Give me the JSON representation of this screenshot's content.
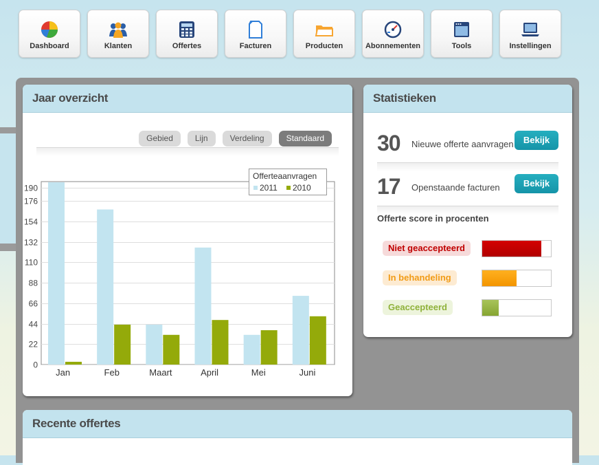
{
  "nav": [
    {
      "id": "dashboard",
      "label": "Dashboard",
      "icon": "pie-chart-icon"
    },
    {
      "id": "klanten",
      "label": "Klanten",
      "icon": "people-icon"
    },
    {
      "id": "offertes",
      "label": "Offertes",
      "icon": "calculator-icon"
    },
    {
      "id": "facturen",
      "label": "Facturen",
      "icon": "document-icon"
    },
    {
      "id": "producten",
      "label": "Producten",
      "icon": "folder-icon"
    },
    {
      "id": "abonnementen",
      "label": "Abonnementen",
      "icon": "gauge-icon"
    },
    {
      "id": "tools",
      "label": "Tools",
      "icon": "window-icon"
    },
    {
      "id": "instellingen",
      "label": "Instellingen",
      "icon": "laptop-icon"
    }
  ],
  "jaar": {
    "title": "Jaar overzicht",
    "tabs": [
      {
        "label": "Gebied",
        "active": false
      },
      {
        "label": "Lijn",
        "active": false
      },
      {
        "label": "Verdeling",
        "active": false
      },
      {
        "label": "Standaard",
        "active": true
      }
    ]
  },
  "chart_data": {
    "type": "bar",
    "title": "",
    "xlabel": "",
    "ylabel": "",
    "legend_title": "Offerteaanvragen",
    "legend_position": "top-right",
    "categories": [
      "Jan",
      "Feb",
      "Maart",
      "April",
      "Mei",
      "Juni"
    ],
    "series": [
      {
        "name": "2011",
        "color": "#c2e4f0",
        "values": [
          200,
          167,
          43,
          126,
          32,
          74
        ]
      },
      {
        "name": "2010",
        "color": "#94aa0a",
        "values": [
          3,
          43,
          32,
          48,
          37,
          52
        ]
      }
    ],
    "yticks": [
      0,
      22,
      44,
      66,
      88,
      110,
      132,
      154,
      176,
      190
    ],
    "ylim": [
      0,
      197
    ],
    "grid": true
  },
  "stats": {
    "title": "Statistieken",
    "rows": [
      {
        "number": "30",
        "label": "Nieuwe offerte aanvragen",
        "button": "Bekijk"
      },
      {
        "number": "17",
        "label": "Openstaande facturen",
        "button": "Bekijk"
      }
    ],
    "score_title": "Offerte score in procenten",
    "scores": [
      {
        "label": "Niet geaccepteerd",
        "percent": 86,
        "text_color": "#c00000",
        "bg": "#f6dada",
        "fill_from": "#d40000",
        "fill_to": "#b00000"
      },
      {
        "label": "In behandeling",
        "percent": 50,
        "text_color": "#f19b16",
        "bg": "#fdebd2",
        "fill_from": "#ffb020",
        "fill_to": "#f39500"
      },
      {
        "label": "Geaccepteerd",
        "percent": 24,
        "text_color": "#8fb23b",
        "bg": "#edf4dc",
        "fill_from": "#a8c45a",
        "fill_to": "#86a532"
      }
    ]
  },
  "recent": {
    "title": "Recente offertes"
  }
}
